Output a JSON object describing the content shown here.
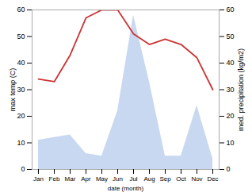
{
  "chart_data": {
    "type": "line",
    "xlabel": "date (month)",
    "ylabel": "max temp (C)",
    "y2label": "med. precipitation (kg/m2)",
    "categories": [
      "Jan",
      "Feb",
      "Mar",
      "Apr",
      "May",
      "Jun",
      "Jul",
      "Aug",
      "Sep",
      "Oct",
      "Nov",
      "Dec"
    ],
    "series": [
      {
        "type": "area",
        "axis": "y2",
        "color": "#c8d8f0",
        "values": [
          11,
          12,
          13,
          6,
          5,
          22,
          58,
          33,
          5,
          5,
          24,
          4
        ]
      },
      {
        "type": "line",
        "color": "#cc3333",
        "values": [
          34,
          33,
          43,
          57,
          60,
          60,
          51,
          47,
          49,
          47,
          42,
          30
        ]
      }
    ],
    "ylim": [
      0,
      60
    ],
    "yticks": [
      0,
      10,
      20,
      30,
      40,
      50,
      60
    ],
    "y2lim": [
      0,
      60
    ],
    "y2ticks": [
      0,
      10,
      20,
      30,
      40,
      50,
      60
    ],
    "grid": false
  }
}
